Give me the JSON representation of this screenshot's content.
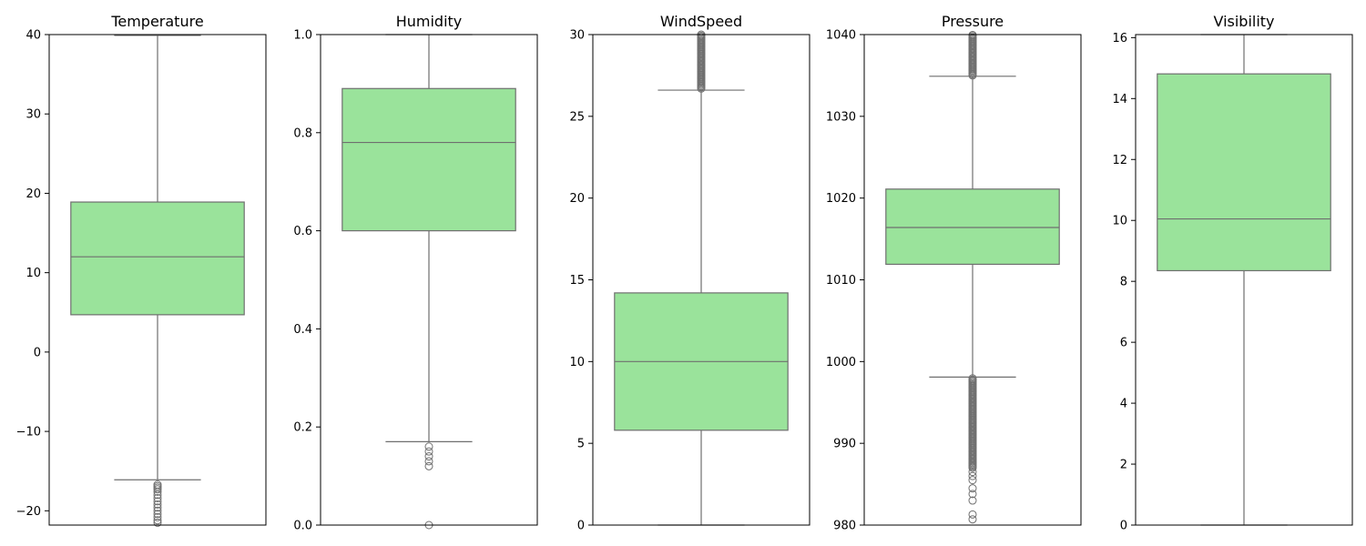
{
  "chart_data": [
    {
      "type": "box",
      "title": "Temperature",
      "ylim": [
        -21.8,
        40
      ],
      "yticks": [
        -20,
        -10,
        0,
        10,
        20,
        30,
        40
      ],
      "ytick_labels": [
        "−20",
        "−10",
        "0",
        "10",
        "20",
        "30",
        "40"
      ],
      "box": {
        "whisker_low": -16.1,
        "q1": 4.7,
        "median": 12.0,
        "q3": 18.9,
        "whisker_high": 39.9
      },
      "outliers": [
        -16.7,
        -16.9,
        -17.1,
        -17.3,
        -17.6,
        -18.0,
        -18.4,
        -18.8,
        -19.2,
        -19.6,
        -20.0,
        -20.4,
        -20.8,
        -21.2,
        -21.5
      ]
    },
    {
      "type": "box",
      "title": "Humidity",
      "ylim": [
        0,
        1.0
      ],
      "yticks": [
        0,
        0.2,
        0.4,
        0.6,
        0.8,
        1.0
      ],
      "ytick_labels": [
        "0.0",
        "0.2",
        "0.4",
        "0.6",
        "0.8",
        "1.0"
      ],
      "box": {
        "whisker_low": 0.17,
        "q1": 0.6,
        "median": 0.78,
        "q3": 0.89,
        "whisker_high": 1.0
      },
      "outliers": [
        0.16,
        0.15,
        0.14,
        0.13,
        0.12,
        0.0
      ]
    },
    {
      "type": "box",
      "title": "WindSpeed",
      "ylim": [
        0,
        30
      ],
      "yticks": [
        0,
        5,
        10,
        15,
        20,
        25,
        30
      ],
      "ytick_labels": [
        "0",
        "5",
        "10",
        "15",
        "20",
        "25",
        "30"
      ],
      "box": {
        "whisker_low": 0.0,
        "q1": 5.8,
        "median": 10.0,
        "q3": 14.2,
        "whisker_high": 26.6
      },
      "outlier_range": [
        26.7,
        30
      ]
    },
    {
      "type": "box",
      "title": "Pressure",
      "ylim": [
        980,
        1040
      ],
      "yticks": [
        980,
        990,
        1000,
        1010,
        1020,
        1030,
        1040
      ],
      "ytick_labels": [
        "980",
        "990",
        "1000",
        "1010",
        "1020",
        "1030",
        "1040"
      ],
      "box": {
        "whisker_low": 998.1,
        "q1": 1011.9,
        "median": 1016.4,
        "q3": 1021.1,
        "whisker_high": 1034.9
      },
      "outlier_range_high": [
        1035.0,
        1040
      ],
      "outlier_range_low": [
        987.0,
        998.0
      ],
      "outliers": [
        986.5,
        986.0,
        985.5,
        984.5,
        983.8,
        983.0,
        981.3,
        980.7
      ]
    },
    {
      "type": "box",
      "title": "Visibility",
      "ylim": [
        0,
        16.1
      ],
      "yticks": [
        0,
        2,
        4,
        6,
        8,
        10,
        12,
        14,
        16
      ],
      "ytick_labels": [
        "0",
        "2",
        "4",
        "6",
        "8",
        "10",
        "12",
        "14",
        "16"
      ],
      "box": {
        "whisker_low": 0.0,
        "q1": 8.35,
        "median": 10.05,
        "q3": 14.81,
        "whisker_high": 16.1
      },
      "outliers": []
    }
  ],
  "colors": {
    "box_fill": "#9ae39b",
    "line": "#6f6f6f",
    "axis": "#000000"
  }
}
